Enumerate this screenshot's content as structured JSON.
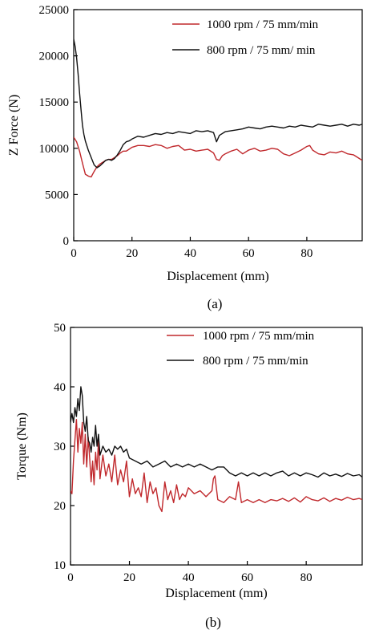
{
  "chart_data": [
    {
      "type": "line",
      "caption": "(a)",
      "xlabel": "Displacement (mm)",
      "ylabel": "Z Force (N)",
      "xlim": [
        0,
        99
      ],
      "ylim": [
        0,
        25000
      ],
      "xticks": [
        0,
        20,
        40,
        60,
        80
      ],
      "yticks": [
        0,
        5000,
        10000,
        15000,
        20000,
        25000
      ],
      "legend_position": "top-right",
      "series": [
        {
          "name": "1000 rpm / 75 mm/min",
          "color": "#c0282c",
          "x": [
            0,
            1,
            2,
            3,
            4,
            5,
            6,
            7,
            8,
            9,
            10,
            11,
            12,
            13,
            14,
            15,
            16,
            17,
            18,
            19,
            20,
            22,
            24,
            26,
            28,
            30,
            32,
            34,
            36,
            38,
            40,
            42,
            44,
            46,
            48,
            49,
            50,
            51,
            52,
            54,
            56,
            58,
            60,
            62,
            64,
            66,
            68,
            70,
            72,
            74,
            76,
            78,
            80,
            81,
            82,
            84,
            86,
            88,
            90,
            92,
            94,
            96,
            98,
            99
          ],
          "y": [
            11200,
            10700,
            9700,
            8400,
            7200,
            7000,
            6900,
            7500,
            8000,
            8300,
            8500,
            8700,
            8800,
            8800,
            9000,
            9200,
            9500,
            9700,
            9700,
            9900,
            10100,
            10300,
            10300,
            10200,
            10400,
            10300,
            10000,
            10200,
            10300,
            9800,
            9900,
            9700,
            9800,
            9900,
            9500,
            8800,
            8700,
            9200,
            9400,
            9700,
            9900,
            9400,
            9800,
            10000,
            9700,
            9800,
            10000,
            9900,
            9400,
            9200,
            9500,
            9800,
            10200,
            10300,
            9800,
            9400,
            9300,
            9600,
            9500,
            9700,
            9400,
            9300,
            8900,
            8700
          ]
        },
        {
          "name": "800 rpm / 75 mm/ min",
          "color": "#111111",
          "x": [
            0,
            0.5,
            1,
            1.5,
            2,
            2.5,
            3,
            3.5,
            4,
            5,
            6,
            7,
            8,
            9,
            10,
            11,
            12,
            13,
            14,
            15,
            16,
            17,
            18,
            19,
            20,
            22,
            24,
            26,
            28,
            30,
            32,
            34,
            36,
            38,
            40,
            42,
            44,
            46,
            48,
            49,
            50,
            52,
            54,
            56,
            58,
            60,
            62,
            64,
            66,
            68,
            70,
            72,
            74,
            76,
            78,
            80,
            82,
            84,
            86,
            88,
            90,
            92,
            94,
            96,
            98,
            99
          ],
          "y": [
            21800,
            21000,
            19800,
            18000,
            16000,
            14200,
            12500,
            11500,
            10800,
            9800,
            9000,
            8200,
            7900,
            8100,
            8400,
            8700,
            8800,
            8700,
            8900,
            9300,
            9800,
            10400,
            10700,
            10800,
            11000,
            11300,
            11200,
            11400,
            11600,
            11500,
            11700,
            11600,
            11800,
            11700,
            11600,
            11900,
            11800,
            11900,
            11700,
            10700,
            11400,
            11800,
            11900,
            12000,
            12100,
            12300,
            12200,
            12100,
            12300,
            12400,
            12300,
            12200,
            12400,
            12300,
            12500,
            12400,
            12300,
            12600,
            12500,
            12400,
            12500,
            12600,
            12400,
            12600,
            12500,
            12600
          ]
        }
      ]
    },
    {
      "type": "line",
      "caption": "(b)",
      "xlabel": "Displacement (mm)",
      "ylabel": "Torque (Nm)",
      "xlim": [
        0,
        99
      ],
      "ylim": [
        10,
        50
      ],
      "xticks": [
        0,
        20,
        40,
        60,
        80
      ],
      "yticks": [
        10,
        20,
        30,
        40,
        50
      ],
      "legend_position": "top-right",
      "series": [
        {
          "name": "1000 rpm / 75 mm/min",
          "color": "#c0282c",
          "x": [
            0,
            0.5,
            1,
            1.5,
            2,
            2.5,
            3,
            3.5,
            4,
            4.5,
            5,
            5.5,
            6,
            6.5,
            7,
            7.5,
            8,
            8.5,
            9,
            9.5,
            10,
            11,
            12,
            13,
            14,
            15,
            16,
            17,
            18,
            19,
            20,
            21,
            22,
            23,
            24,
            25,
            26,
            27,
            28,
            29,
            30,
            31,
            32,
            33,
            34,
            35,
            36,
            37,
            38,
            39,
            40,
            42,
            44,
            46,
            48,
            48.5,
            49,
            50,
            52,
            54,
            56,
            57,
            58,
            60,
            62,
            64,
            66,
            68,
            70,
            72,
            74,
            76,
            78,
            80,
            82,
            84,
            86,
            88,
            90,
            92,
            94,
            96,
            98,
            99
          ],
          "y": [
            22.5,
            22.0,
            27.5,
            31.0,
            34.5,
            29.0,
            33.0,
            30.5,
            34.0,
            27.0,
            32.0,
            26.5,
            31.5,
            28.0,
            24.0,
            27.5,
            23.5,
            29.0,
            26.0,
            31.0,
            24.5,
            28.5,
            25.0,
            27.0,
            24.0,
            28.5,
            23.5,
            26.0,
            24.0,
            27.5,
            21.5,
            24.5,
            22.0,
            23.0,
            21.5,
            25.5,
            20.5,
            24.0,
            22.0,
            23.0,
            20.0,
            19.0,
            24.0,
            21.0,
            22.5,
            20.5,
            23.5,
            21.0,
            22.0,
            21.5,
            23.0,
            22.0,
            22.5,
            21.5,
            22.5,
            24.5,
            25.0,
            21.0,
            20.5,
            21.5,
            21.0,
            24.0,
            20.5,
            21.0,
            20.5,
            21.0,
            20.5,
            21.0,
            20.8,
            21.2,
            20.7,
            21.3,
            20.6,
            21.5,
            21.0,
            20.8,
            21.3,
            20.7,
            21.2,
            20.9,
            21.4,
            21.0,
            21.2,
            21.0
          ]
        },
        {
          "name": "800 rpm / 75 mm/min",
          "color": "#111111",
          "x": [
            0,
            0.5,
            1,
            1.5,
            2,
            2.5,
            3,
            3.5,
            4,
            4.5,
            5,
            5.5,
            6,
            6.5,
            7,
            7.5,
            8,
            8.5,
            9,
            9.5,
            10,
            11,
            12,
            13,
            14,
            15,
            16,
            17,
            18,
            19,
            20,
            22,
            24,
            26,
            28,
            30,
            32,
            34,
            36,
            38,
            40,
            42,
            44,
            46,
            48,
            50,
            52,
            54,
            56,
            58,
            60,
            62,
            64,
            66,
            68,
            70,
            72,
            74,
            76,
            78,
            80,
            82,
            84,
            86,
            88,
            90,
            92,
            94,
            96,
            98,
            99
          ],
          "y": [
            34.0,
            35.5,
            34.0,
            36.5,
            35.0,
            38.0,
            36.0,
            40.0,
            38.5,
            34.0,
            32.5,
            35.0,
            31.0,
            30.5,
            29.0,
            31.5,
            30.0,
            33.5,
            30.0,
            32.0,
            28.5,
            30.0,
            29.0,
            29.5,
            28.5,
            30.0,
            29.5,
            30.0,
            29.0,
            29.5,
            28.0,
            27.5,
            27.0,
            27.5,
            26.5,
            27.0,
            27.5,
            26.5,
            27.0,
            26.5,
            27.0,
            26.5,
            27.0,
            26.5,
            26.0,
            26.5,
            26.5,
            25.5,
            25.0,
            25.5,
            25.0,
            25.5,
            25.0,
            25.5,
            25.0,
            25.5,
            25.8,
            25.0,
            25.5,
            25.0,
            25.5,
            25.2,
            24.8,
            25.5,
            25.0,
            25.3,
            24.9,
            25.4,
            25.0,
            25.2,
            24.8
          ]
        }
      ]
    }
  ]
}
